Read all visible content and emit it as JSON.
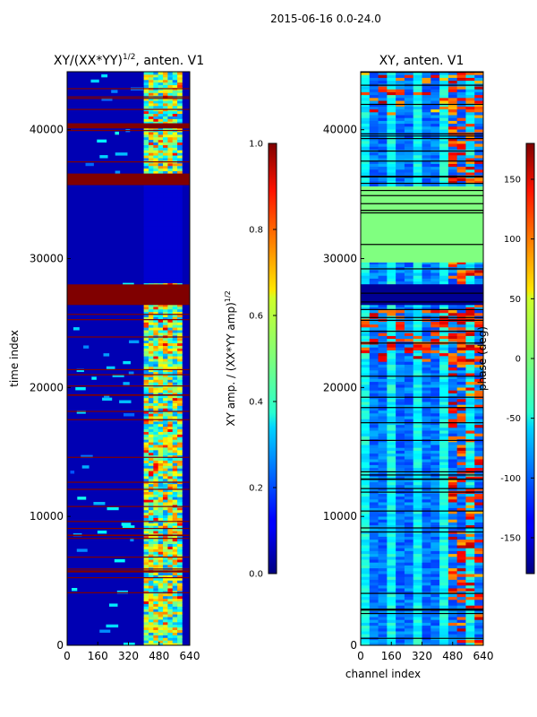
{
  "figure": {
    "suptitle": "2015-06-16 0.0-24.0"
  },
  "chart_data": [
    {
      "type": "heatmap",
      "title_main": "XY/(XX*YY)",
      "title_sup": "1/2",
      "title_rest": ", anten. V1",
      "xlabel": "",
      "ylabel": "time index",
      "xlim": [
        0,
        640
      ],
      "ylim": [
        0,
        44500
      ],
      "xticks": [
        0,
        160,
        320,
        480,
        640
      ],
      "yticks": [
        0,
        10000,
        20000,
        30000,
        40000
      ],
      "colormap": "jet",
      "colorbar": {
        "label": "XY amp. / (XX*YY amp)",
        "label_sup": "1/2",
        "range": [
          0.0,
          1.0
        ],
        "ticks": [
          "0.0",
          "0.2",
          "0.4",
          "0.6",
          "0.8",
          "1.0"
        ],
        "tick_values": [
          0.0,
          0.2,
          0.4,
          0.6,
          0.8,
          1.0
        ]
      },
      "dominant_value": 0.05,
      "saturated_bands": [
        [
          35700,
          36600
        ],
        [
          26400,
          28000
        ],
        [
          40100,
          40500
        ]
      ],
      "bright_channel_range": [
        400,
        600
      ]
    },
    {
      "type": "heatmap",
      "title": "XY, anten. V1",
      "xlabel": "channel index",
      "ylabel": "",
      "xlim": [
        0,
        640
      ],
      "ylim": [
        0,
        44500
      ],
      "xticks": [
        0,
        160,
        320,
        480,
        640
      ],
      "yticks": [
        0,
        10000,
        20000,
        30000,
        40000
      ],
      "colormap": "jet",
      "colorbar": {
        "label": "phase (deg)",
        "range": [
          -180,
          180
        ],
        "ticks": [
          "-150",
          "-100",
          "-50",
          "0",
          "50",
          "100",
          "150"
        ],
        "tick_values": [
          -150,
          -100,
          -50,
          0,
          50,
          100,
          150
        ]
      },
      "flat_phase_band": [
        29700,
        35600
      ],
      "flat_phase_value": 0,
      "dark_band": [
        26400,
        28000
      ]
    }
  ]
}
